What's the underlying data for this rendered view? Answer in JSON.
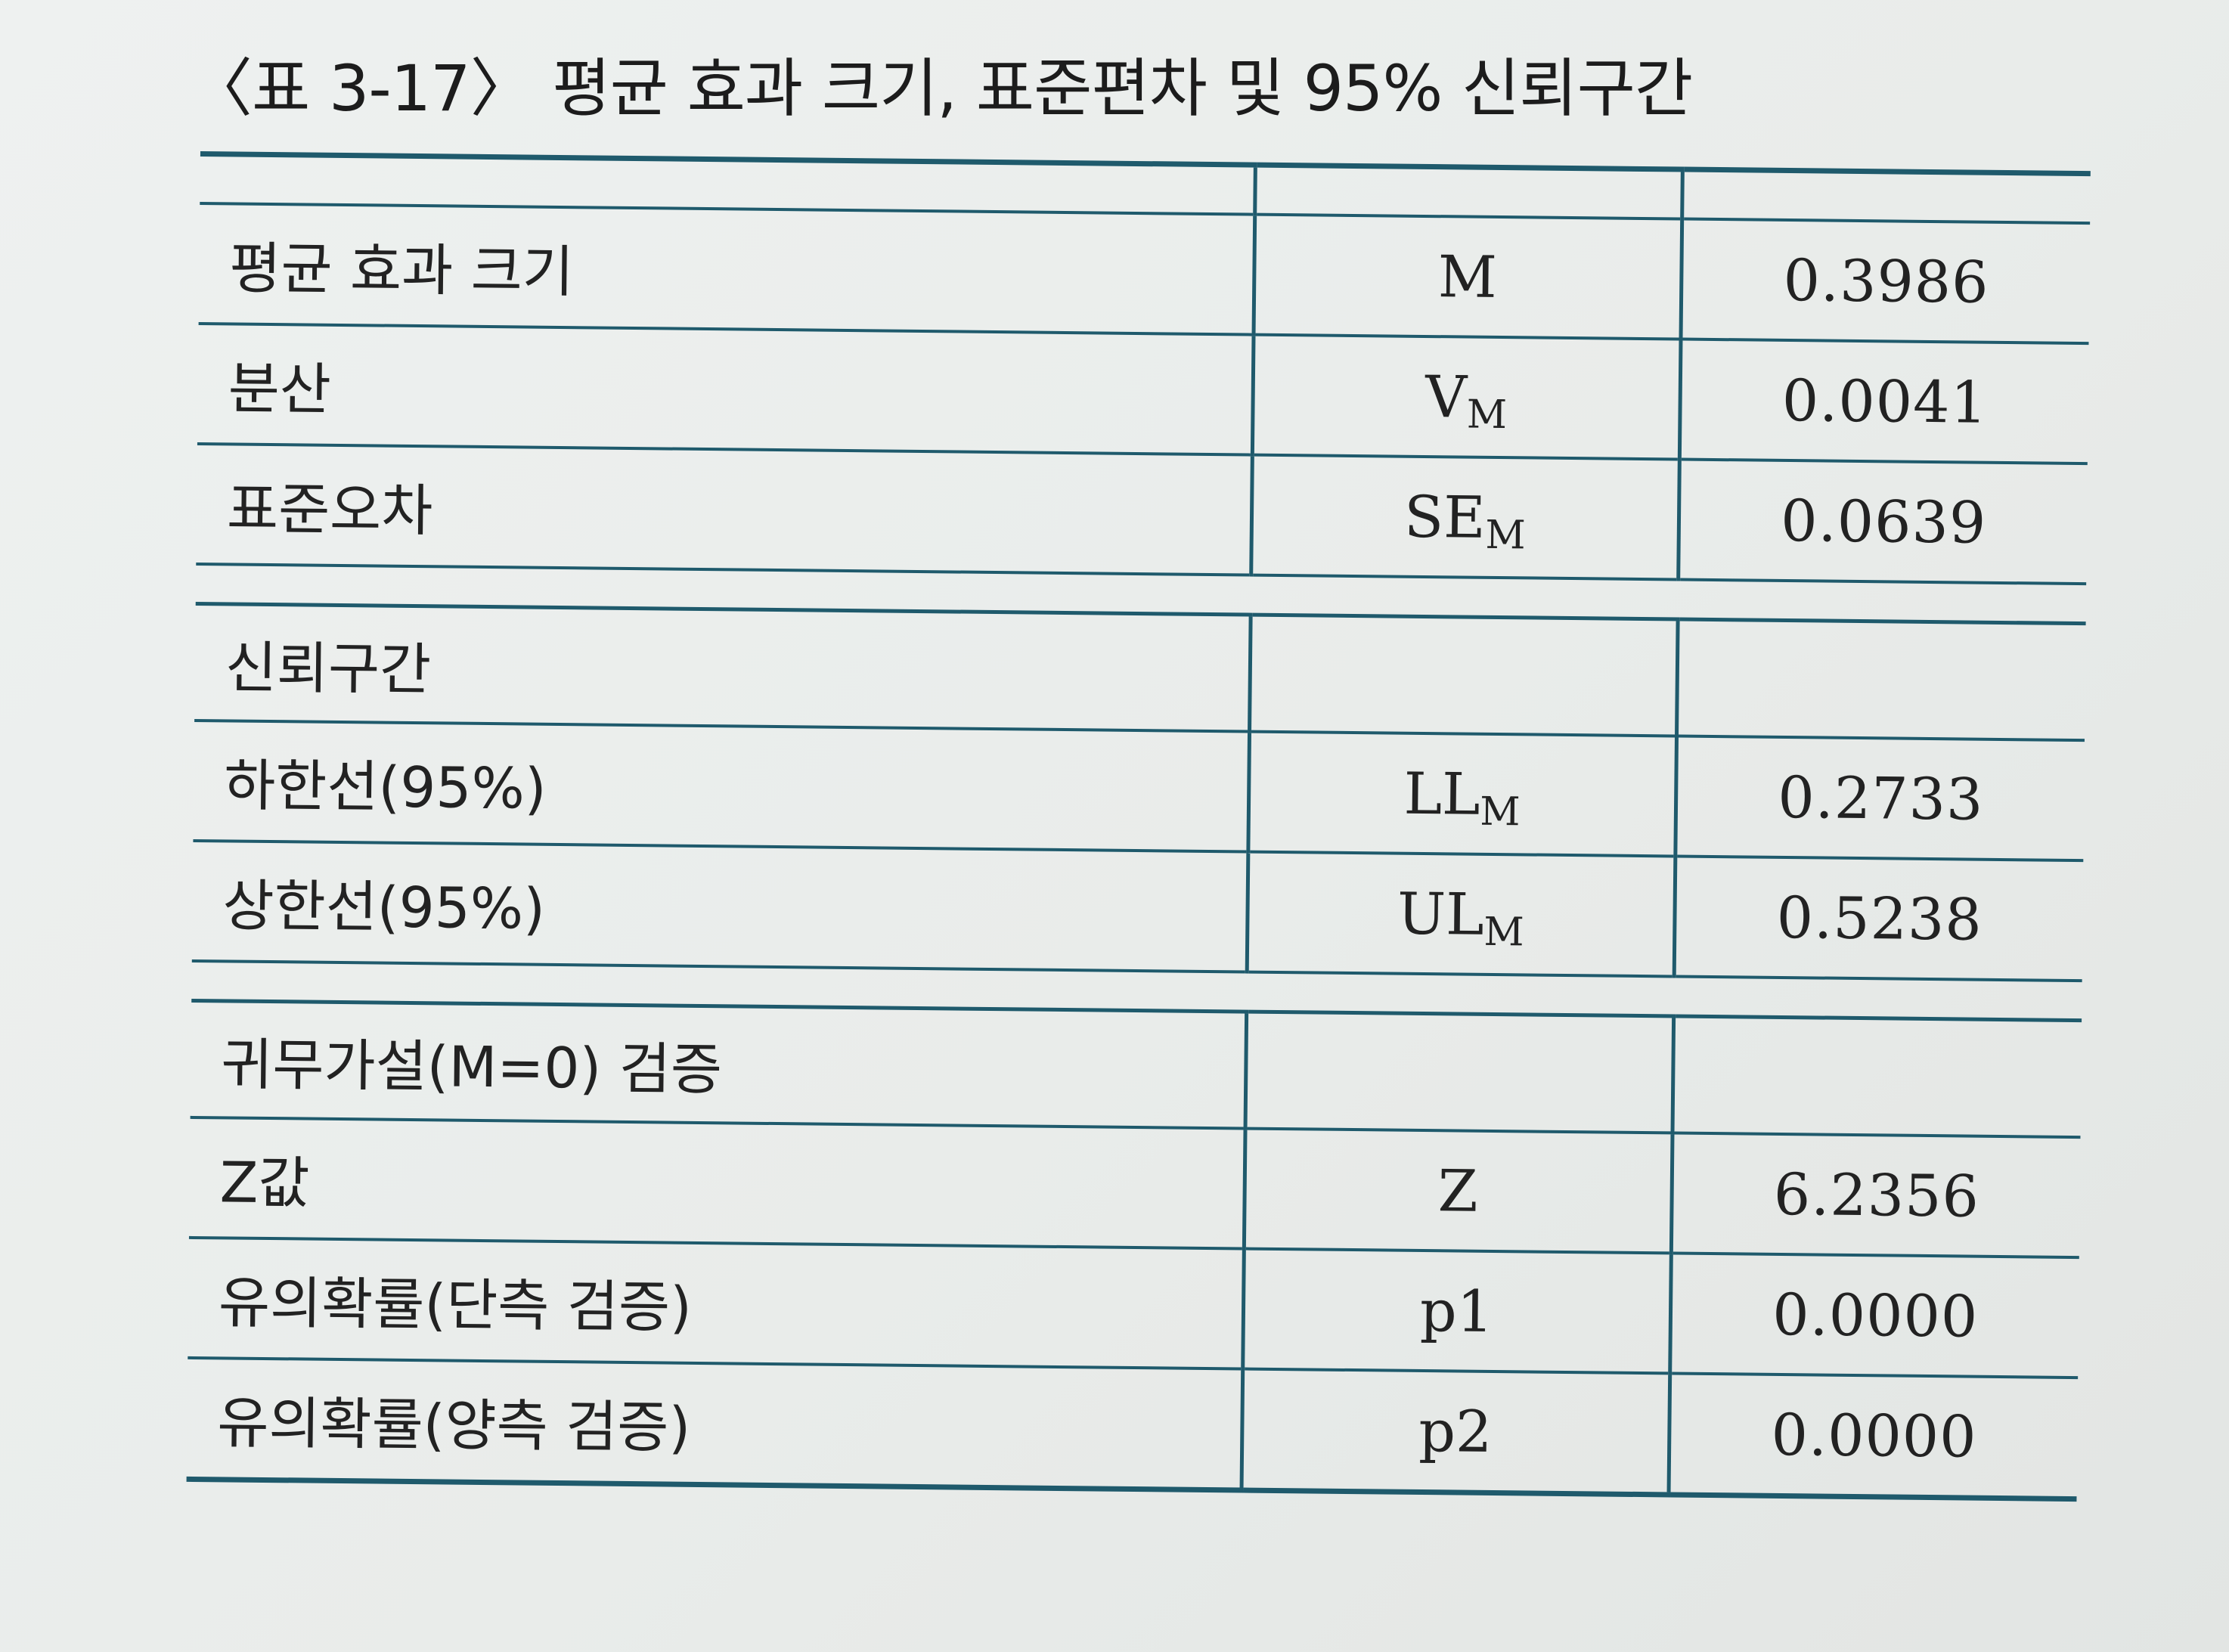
{
  "caption": "〈표 3-17〉 평균 효과 크기, 표준편차 및 95% 신뢰구간",
  "rows": {
    "mean": {
      "label": "평균 효과 크기",
      "symbol": "M",
      "symbol_sub": "",
      "value": "0.3986"
    },
    "variance": {
      "label": "분산",
      "symbol": "V",
      "symbol_sub": "M",
      "value": "0.0041"
    },
    "std_error": {
      "label": "표준오차",
      "symbol": "SE",
      "symbol_sub": "M",
      "value": "0.0639"
    },
    "ci_header": {
      "label": "신뢰구간"
    },
    "lower": {
      "label": "하한선(95%)",
      "symbol": "LL",
      "symbol_sub": "M",
      "value": "0.2733"
    },
    "upper": {
      "label": "상한선(95%)",
      "symbol": "UL",
      "symbol_sub": "M",
      "value": "0.5238"
    },
    "test_header": {
      "label": "귀무가설(M=0) 검증"
    },
    "z": {
      "label": "Z값",
      "symbol": "Z",
      "symbol_sub": "",
      "value": "6.2356"
    },
    "p_one": {
      "label": "유의확률(단측 검증)",
      "symbol": "p1",
      "symbol_sub": "",
      "value": "0.0000"
    },
    "p_two": {
      "label": "유의확률(양측 검증)",
      "symbol": "p2",
      "symbol_sub": "",
      "value": "0.0000"
    }
  },
  "colors": {
    "rule": "#1f5a6c",
    "background": "#eef1f0",
    "text": "#222222"
  }
}
